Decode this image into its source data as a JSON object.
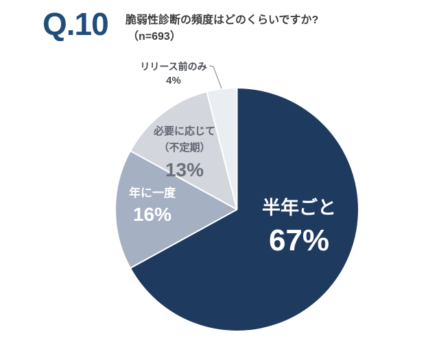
{
  "header": {
    "question_number": "Q.10",
    "title": "脆弱性診断の頻度はどのくらいですか?",
    "sample_size": "（n=693）"
  },
  "chart_data": {
    "type": "pie",
    "title": "脆弱性診断の頻度はどのくらいですか?",
    "n": 693,
    "start_angle_deg": 0,
    "direction": "clockwise",
    "legend": "none",
    "slices": [
      {
        "id": "half-year",
        "name": "半年ごと",
        "pct": 67,
        "pct_text": "67%",
        "color": "#1e3a5f",
        "text_color": "#ffffff",
        "label_placement": "inside"
      },
      {
        "id": "once-a-year",
        "name": "年に一度",
        "pct": 16,
        "pct_text": "16%",
        "color": "#a6b0c3",
        "text_color": "#ffffff",
        "label_placement": "inside"
      },
      {
        "id": "as-needed",
        "name": "必要に応じて（不定期）",
        "name_line1": "必要に応じて",
        "name_line2": "（不定期）",
        "pct": 13,
        "pct_text": "13%",
        "color": "#d3d6dc",
        "text_color": "#5e6470",
        "label_placement": "inside"
      },
      {
        "id": "pre-release",
        "name": "リリース前のみ",
        "pct": 4,
        "pct_text": "4%",
        "color": "#eaedf2",
        "text_color": "#474b52",
        "label_placement": "outside-callout"
      }
    ]
  },
  "colors": {
    "accent_blue": "#1f4e79",
    "title_text": "#3b3b3b",
    "callout_line": "#a0a4aa",
    "slice_border": "#ffffff",
    "background": "#ffffff"
  }
}
